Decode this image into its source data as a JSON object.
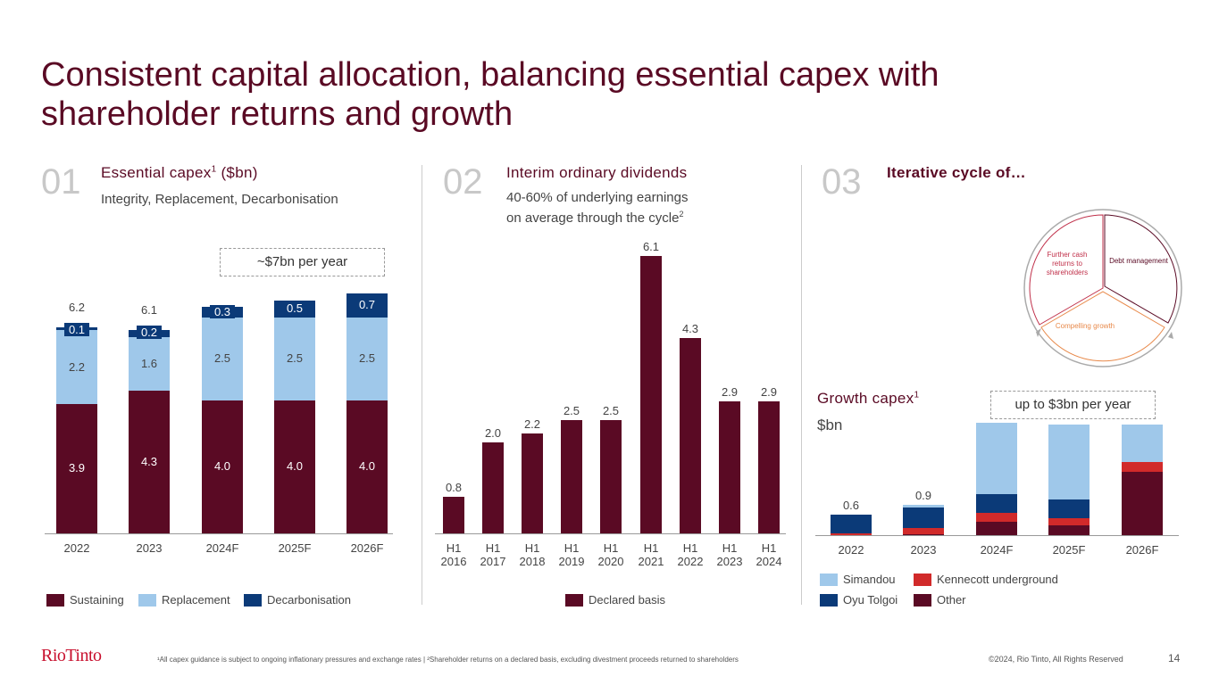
{
  "title": "Consistent capital allocation, balancing essential capex with shareholder returns and growth",
  "sections": [
    {
      "num": "01",
      "heading": "Essential capex",
      "heading_sup": "1",
      "heading_unit": " ($bn)",
      "sub": "Integrity, Replacement, Decarbonisation",
      "callout": "~$7bn per year"
    },
    {
      "num": "02",
      "heading": "Interim ordinary dividends",
      "sub1": "40-60% of underlying earnings",
      "sub2": "on average through the cycle",
      "sub2_sup": "2"
    },
    {
      "num": "03",
      "heading": "Iterative cycle of…",
      "cycle": [
        "Further cash returns to shareholders",
        "Debt management",
        "Compelling growth"
      ],
      "growth_heading": "Growth capex",
      "growth_sup": "1",
      "growth_unit": "$bn",
      "callout": "up to $3bn per year"
    }
  ],
  "colors": {
    "maroon": "#5a0a24",
    "light_blue": "#9fc8ea",
    "navy": "#0b3a78",
    "red": "#d12a2a"
  },
  "chart_data": [
    {
      "type": "bar",
      "stacked": true,
      "title": "Essential capex ($bn)",
      "categories": [
        "2022",
        "2023",
        "2024F",
        "2025F",
        "2026F"
      ],
      "series": [
        {
          "name": "Sustaining",
          "values": [
            3.9,
            4.3,
            4.0,
            4.0,
            4.0
          ]
        },
        {
          "name": "Replacement",
          "values": [
            2.2,
            1.6,
            2.5,
            2.5,
            2.5
          ]
        },
        {
          "name": "Decarbonisation",
          "values": [
            0.1,
            0.2,
            0.3,
            0.5,
            0.7
          ]
        }
      ],
      "totals": [
        "6.2",
        "6.1",
        null,
        null,
        null
      ],
      "ylim": [
        0,
        7.2
      ]
    },
    {
      "type": "bar",
      "title": "Interim ordinary dividends",
      "categories": [
        "H1 2016",
        "H1 2017",
        "H1 2018",
        "H1 2019",
        "H1 2020",
        "H1 2021",
        "H1 2022",
        "H1 2023",
        "H1 2024"
      ],
      "series": [
        {
          "name": "Declared basis",
          "values": [
            0.8,
            2.0,
            2.2,
            2.5,
            2.5,
            6.1,
            4.3,
            2.9,
            2.9
          ]
        }
      ],
      "ylim": [
        0,
        6.2
      ]
    },
    {
      "type": "bar",
      "stacked": true,
      "title": "Growth capex ($bn)",
      "categories": [
        "2022",
        "2023",
        "2024F",
        "2025F",
        "2026F"
      ],
      "series": [
        {
          "name": "Other",
          "values": [
            0.0,
            0.03,
            0.4,
            0.3,
            1.85
          ]
        },
        {
          "name": "Kennecott underground",
          "values": [
            0.05,
            0.17,
            0.25,
            0.2,
            0.3
          ]
        },
        {
          "name": "Oyu Tolgoi",
          "values": [
            0.55,
            0.6,
            0.55,
            0.55,
            0.0
          ]
        },
        {
          "name": "Simandou",
          "values": [
            0.0,
            0.1,
            2.1,
            2.2,
            1.1
          ]
        }
      ],
      "totals": [
        "0.6",
        "0.9",
        null,
        null,
        null
      ],
      "ylim": [
        0,
        3.3
      ]
    }
  ],
  "legend1": [
    "Sustaining",
    "Replacement",
    "Decarbonisation"
  ],
  "legend2": [
    "Declared basis"
  ],
  "legend3": [
    "Simandou",
    "Kennecott underground",
    "Oyu Tolgoi",
    "Other"
  ],
  "footer": {
    "logo": "RioTinto",
    "note": "¹All capex guidance is subject to ongoing inflationary pressures and exchange rates | ²Shareholder returns on a declared basis, excluding divestment proceeds returned to shareholders",
    "copyright": "©2024, Rio Tinto, All Rights Reserved",
    "page": "14"
  }
}
